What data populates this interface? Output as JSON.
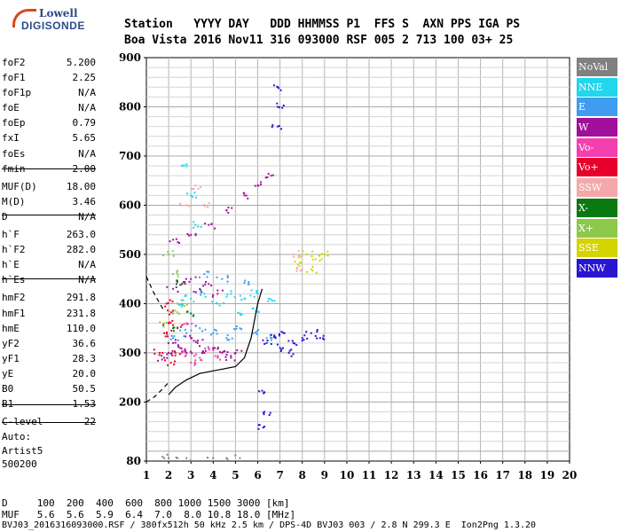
{
  "logo": {
    "line1": "Lowell",
    "line2": "DIGISONDE"
  },
  "header": {
    "row1": "Station   YYYY DAY   DDD HHMMSS P1  FFS S  AXN PPS IGA PS",
    "row2": "Boa Vista 2016 Nov11 316 093000 RSF 005 2 713 100 03+ 25"
  },
  "params": [
    {
      "label": "foF2",
      "value": "5.200"
    },
    {
      "label": "foF1",
      "value": "2.25"
    },
    {
      "label": "foF1p",
      "value": "N/A"
    },
    {
      "label": "foE",
      "value": "N/A"
    },
    {
      "label": "foEp",
      "value": "0.79"
    },
    {
      "label": "fxI",
      "value": "5.65"
    },
    {
      "label": "foEs",
      "value": "N/A"
    },
    {
      "label": "fmin",
      "value": "2.00"
    },
    {
      "label": "MUF(D)",
      "value": "18.00"
    },
    {
      "label": "M(D)",
      "value": "3.46"
    },
    {
      "label": "D",
      "value": "N/A"
    },
    {
      "label": "h`F",
      "value": "263.0"
    },
    {
      "label": "h`F2",
      "value": "282.0"
    },
    {
      "label": "h`E",
      "value": "N/A"
    },
    {
      "label": "h`Es",
      "value": "N/A"
    },
    {
      "label": "hmF2",
      "value": "291.8"
    },
    {
      "label": "hmF1",
      "value": "231.8"
    },
    {
      "label": "hmE",
      "value": "110.0"
    },
    {
      "label": "yF2",
      "value": "36.6"
    },
    {
      "label": "yF1",
      "value": "28.3"
    },
    {
      "label": "yE",
      "value": "20.0"
    },
    {
      "label": "B0",
      "value": "50.5"
    },
    {
      "label": "B1",
      "value": "1.53"
    },
    {
      "label": "C-level",
      "value": "22"
    }
  ],
  "auto": {
    "line1": "Auto:",
    "line2": "Artist5",
    "line3": "500200"
  },
  "footer": {
    "d_row": "D     100  200  400  600  800 1000 1500 3000 [km]",
    "muf_row": "MUF   5.6  5.6  5.9  6.4  7.0  8.0 10.8 18.0 [MHz]",
    "file_row": "BVJ03_2016316093000.RSF / 380fx512h 50 kHz 2.5 km / DPS-4D BVJ03 003 / 2.8 N 299.3 E  Ion2Png 1.3.20"
  },
  "legend": [
    {
      "label": "NoVal",
      "color": "#808080"
    },
    {
      "label": "NNE",
      "color": "#22d6ee"
    },
    {
      "label": "E",
      "color": "#3f9cf0"
    },
    {
      "label": "W",
      "color": "#a0109a"
    },
    {
      "label": "Vo-",
      "color": "#f43fae"
    },
    {
      "label": "Vo+",
      "color": "#e8002a"
    },
    {
      "label": "SSW",
      "color": "#f4a8a8"
    },
    {
      "label": "X-",
      "color": "#0a7a10"
    },
    {
      "label": "X+",
      "color": "#8cc84a"
    },
    {
      "label": "SSE",
      "color": "#d4d400"
    },
    {
      "label": "NNW",
      "color": "#2a16d0"
    }
  ],
  "chart_data": {
    "type": "scatter",
    "xlabel": "",
    "ylabel": "",
    "xlim": [
      1,
      20
    ],
    "ylim": [
      80,
      900
    ],
    "x_ticks": [
      "1",
      "2",
      "3",
      "4",
      "5",
      "6",
      "7",
      "8",
      "9",
      "10",
      "11",
      "12",
      "13",
      "14",
      "15",
      "16",
      "17",
      "18",
      "19",
      "20"
    ],
    "y_ticks": [
      "80",
      "200",
      "300",
      "400",
      "500",
      "600",
      "700",
      "800",
      "900"
    ],
    "grid": true,
    "series": [
      {
        "name": "W",
        "color": "#a0109a",
        "points": [
          [
            1.8,
            290
          ],
          [
            2.0,
            300
          ],
          [
            2.2,
            320
          ],
          [
            2.5,
            310
          ],
          [
            2.8,
            300
          ],
          [
            3.0,
            330
          ],
          [
            3.3,
            320
          ],
          [
            3.6,
            300
          ],
          [
            4.0,
            310
          ],
          [
            4.4,
            300
          ],
          [
            4.8,
            290
          ],
          [
            5.0,
            300
          ],
          [
            2.2,
            430
          ],
          [
            2.6,
            440
          ],
          [
            3.0,
            450
          ],
          [
            3.4,
            430
          ],
          [
            3.8,
            440
          ],
          [
            4.2,
            420
          ],
          [
            2.2,
            530
          ],
          [
            3.0,
            540
          ],
          [
            3.8,
            560
          ],
          [
            4.6,
            590
          ],
          [
            5.4,
            620
          ],
          [
            6.0,
            640
          ],
          [
            6.6,
            660
          ]
        ]
      },
      {
        "name": "NNE",
        "color": "#22d6ee",
        "points": [
          [
            2.4,
            400
          ],
          [
            3.0,
            410
          ],
          [
            3.6,
            420
          ],
          [
            4.2,
            400
          ],
          [
            4.8,
            420
          ],
          [
            5.4,
            410
          ],
          [
            6.0,
            420
          ],
          [
            6.5,
            410
          ],
          [
            5.2,
            380
          ],
          [
            5.8,
            390
          ],
          [
            3.2,
            560
          ],
          [
            3.0,
            620
          ],
          [
            2.6,
            680
          ]
        ]
      },
      {
        "name": "E",
        "color": "#3f9cf0",
        "points": [
          [
            2.2,
            330
          ],
          [
            2.8,
            340
          ],
          [
            3.4,
            350
          ],
          [
            4.0,
            340
          ],
          [
            4.6,
            330
          ],
          [
            5.2,
            350
          ],
          [
            5.8,
            340
          ],
          [
            6.4,
            330
          ],
          [
            3.6,
            460
          ],
          [
            4.4,
            450
          ],
          [
            5.6,
            440
          ]
        ]
      },
      {
        "name": "Vo+",
        "color": "#e8002a",
        "points": [
          [
            1.6,
            300
          ],
          [
            1.8,
            340
          ],
          [
            2.0,
            360
          ],
          [
            2.2,
            380
          ],
          [
            2.4,
            350
          ],
          [
            1.9,
            400
          ],
          [
            2.1,
            280
          ],
          [
            2.3,
            300
          ]
        ]
      },
      {
        "name": "Vo-",
        "color": "#f43fae",
        "points": [
          [
            2.6,
            300
          ],
          [
            3.0,
            280
          ],
          [
            3.4,
            290
          ],
          [
            3.8,
            310
          ],
          [
            4.2,
            290
          ],
          [
            2.8,
            360
          ]
        ]
      },
      {
        "name": "NNW",
        "color": "#2a16d0",
        "points": [
          [
            6.4,
            320
          ],
          [
            6.8,
            330
          ],
          [
            7.2,
            340
          ],
          [
            7.6,
            320
          ],
          [
            8.0,
            330
          ],
          [
            8.4,
            340
          ],
          [
            8.8,
            330
          ],
          [
            7.0,
            310
          ],
          [
            7.4,
            300
          ],
          [
            6.9,
            800
          ],
          [
            6.9,
            840
          ],
          [
            6.9,
            760
          ],
          [
            6.3,
            220
          ],
          [
            6.3,
            180
          ],
          [
            6.3,
            150
          ]
        ]
      },
      {
        "name": "SSE",
        "color": "#d4d400",
        "points": [
          [
            7.8,
            480
          ],
          [
            8.2,
            500
          ],
          [
            8.6,
            490
          ],
          [
            9.0,
            500
          ],
          [
            8.4,
            470
          ]
        ]
      },
      {
        "name": "X+",
        "color": "#8cc84a",
        "points": [
          [
            1.8,
            360
          ],
          [
            2.2,
            380
          ],
          [
            2.4,
            460
          ],
          [
            2.0,
            500
          ],
          [
            2.6,
            400
          ]
        ]
      },
      {
        "name": "X-",
        "color": "#0a7a10",
        "points": [
          [
            2.6,
            440
          ],
          [
            3.0,
            380
          ],
          [
            2.2,
            350
          ]
        ]
      },
      {
        "name": "SSW",
        "color": "#f4a8a8",
        "points": [
          [
            3.2,
            640
          ],
          [
            3.6,
            600
          ],
          [
            2.8,
            600
          ],
          [
            7.6,
            500
          ],
          [
            8.0,
            470
          ]
        ]
      },
      {
        "name": "NoVal",
        "color": "#808080",
        "points": [
          [
            1.8,
            86
          ],
          [
            2.0,
            86
          ],
          [
            2.4,
            86
          ],
          [
            2.8,
            86
          ],
          [
            4.0,
            86
          ],
          [
            4.6,
            86
          ],
          [
            5.2,
            86
          ]
        ]
      }
    ],
    "profile": [
      [
        2.0,
        215
      ],
      [
        2.3,
        230
      ],
      [
        2.8,
        245
      ],
      [
        3.4,
        258
      ],
      [
        4.2,
        265
      ],
      [
        5.0,
        272
      ],
      [
        5.4,
        290
      ],
      [
        5.7,
        330
      ],
      [
        6.0,
        400
      ],
      [
        6.2,
        430
      ]
    ],
    "profile_dashed_lower": [
      [
        1.0,
        200
      ],
      [
        1.4,
        212
      ],
      [
        1.8,
        230
      ],
      [
        2.0,
        240
      ]
    ],
    "profile_dashed_upper": [
      [
        1.0,
        455
      ],
      [
        1.3,
        425
      ],
      [
        1.6,
        400
      ],
      [
        1.8,
        385
      ]
    ]
  }
}
